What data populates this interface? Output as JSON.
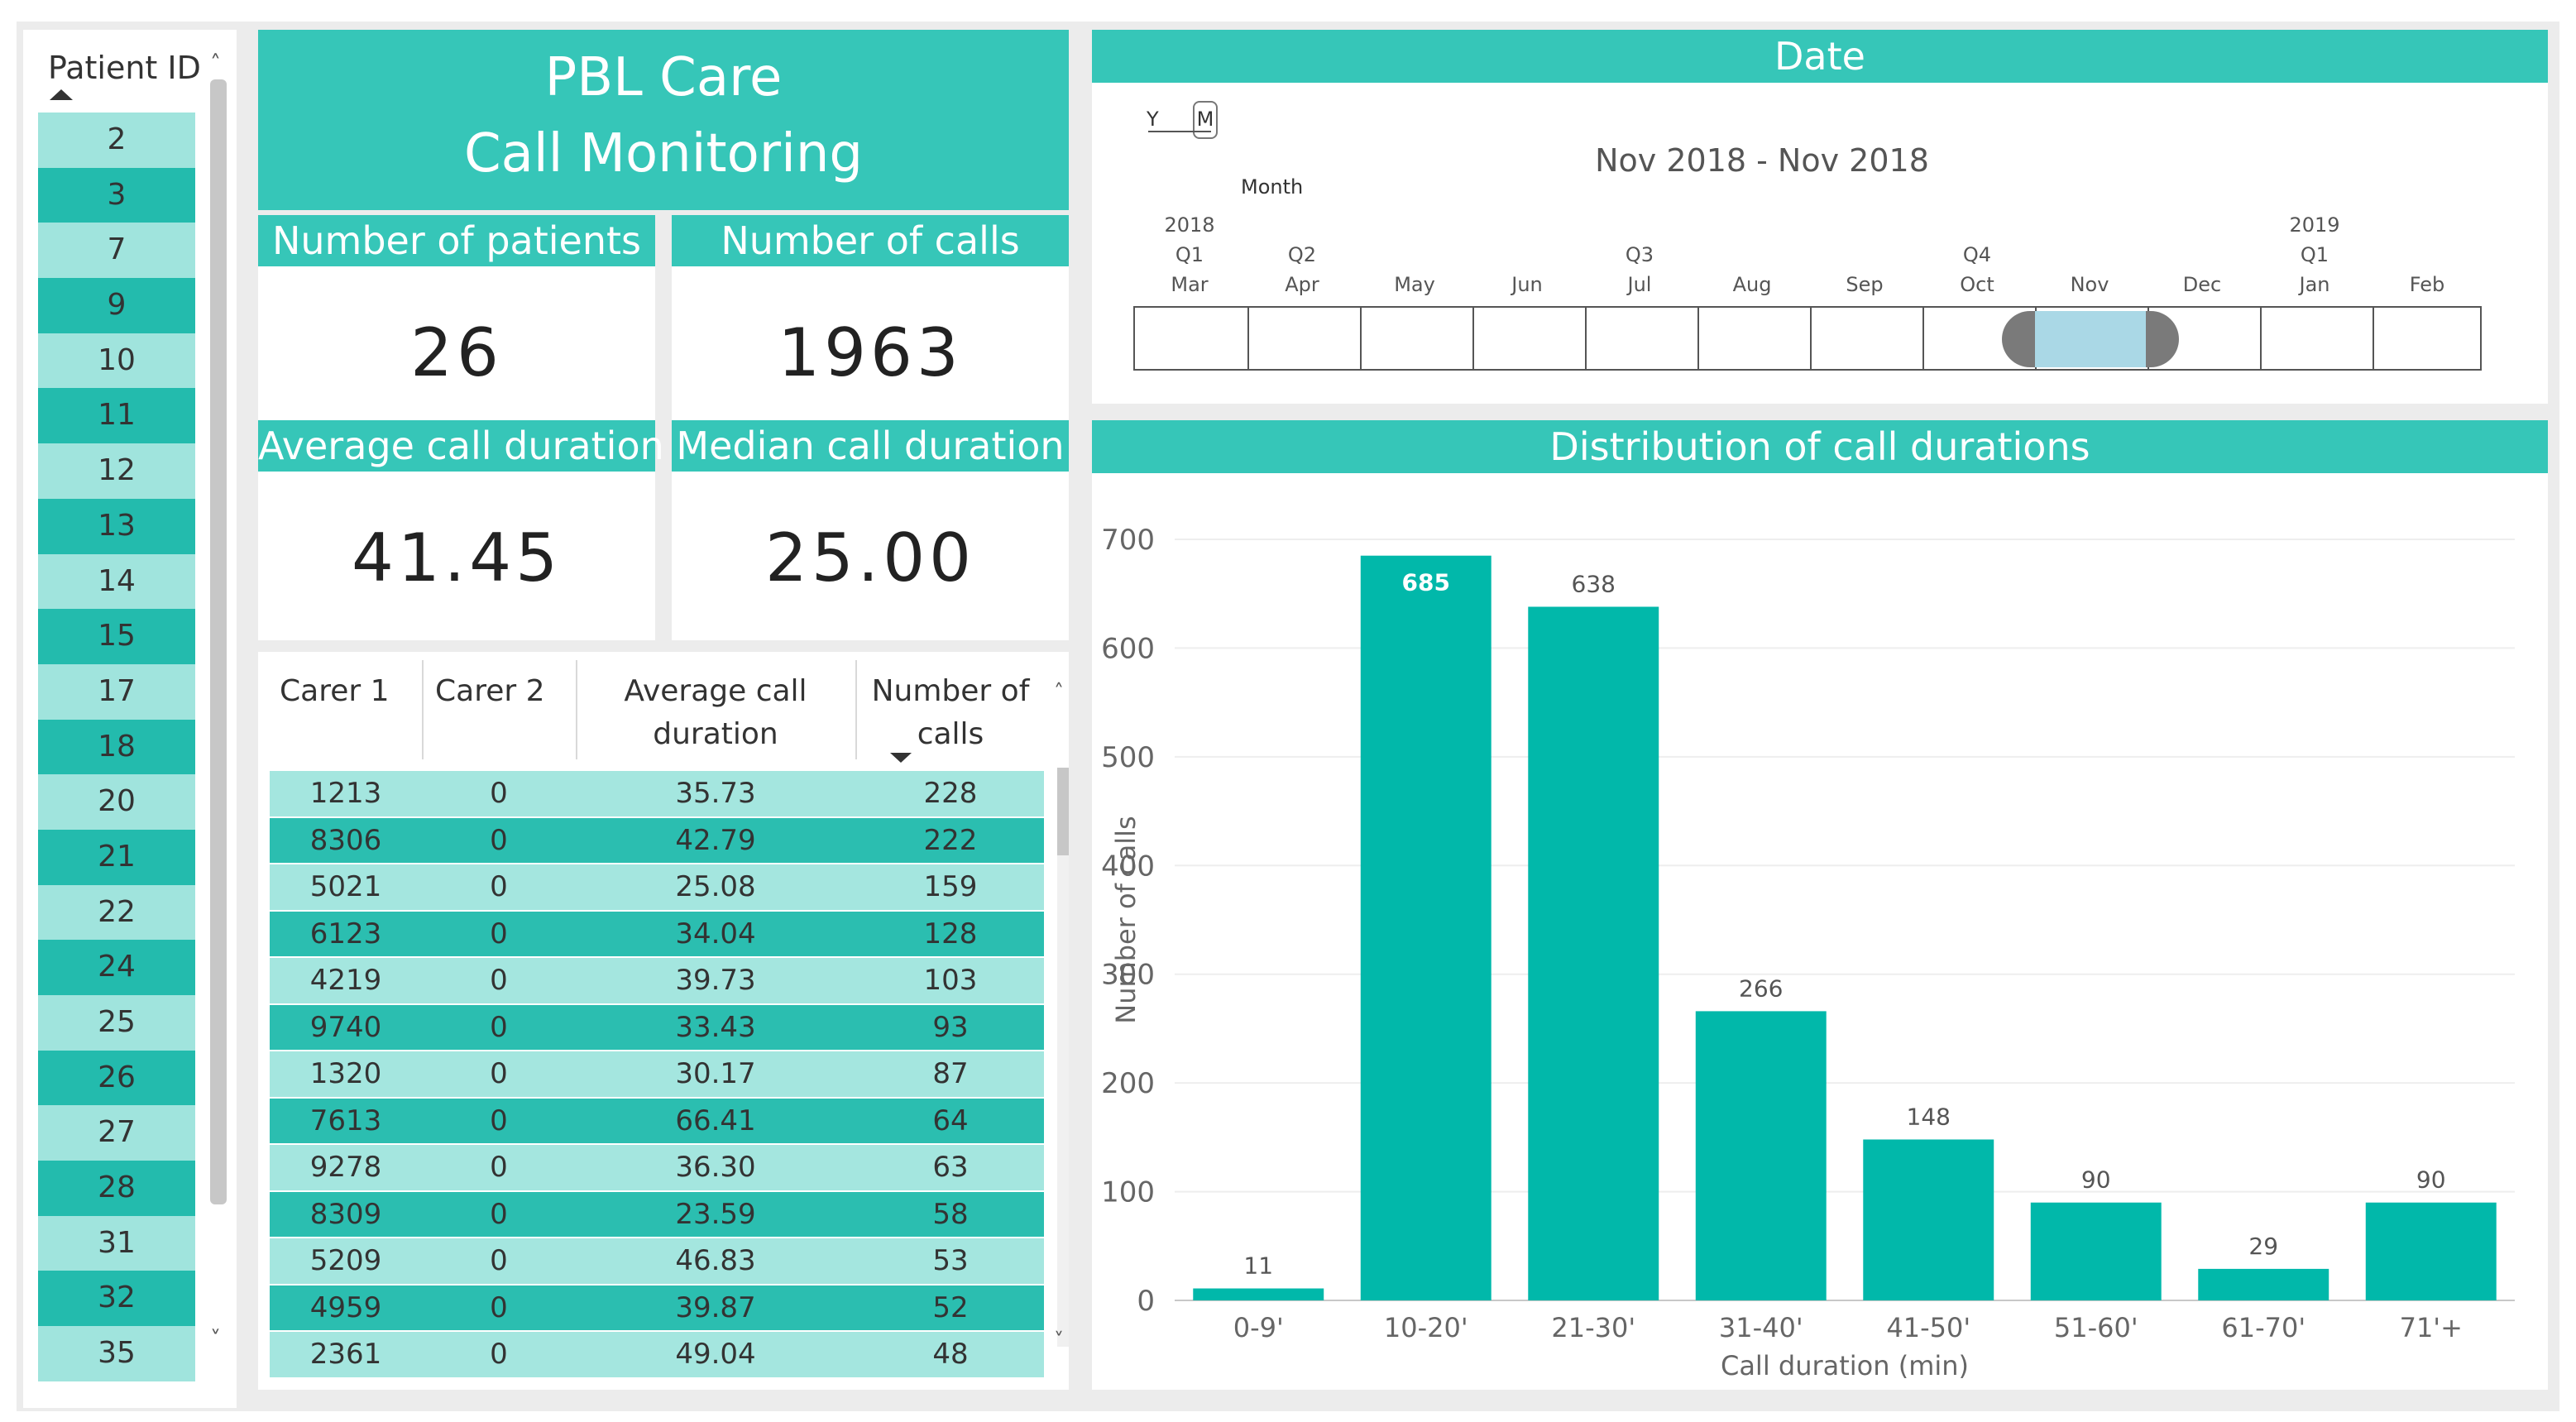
{
  "slicer": {
    "title": "Patient ID",
    "ids": [
      "2",
      "3",
      "7",
      "9",
      "10",
      "11",
      "12",
      "13",
      "14",
      "15",
      "17",
      "18",
      "20",
      "21",
      "22",
      "24",
      "25",
      "26",
      "27",
      "28",
      "31",
      "32",
      "35"
    ]
  },
  "title": {
    "line1": "PBL Care",
    "line2": "Call Monitoring"
  },
  "kpis": {
    "patients": {
      "label": "Number of patients",
      "value": "26"
    },
    "calls": {
      "label": "Number of calls",
      "value": "1963"
    },
    "avg": {
      "label": "Average call duration",
      "value": "41.45"
    },
    "median": {
      "label": "Median call duration",
      "value": "25.00"
    }
  },
  "table": {
    "headers": {
      "c1": "Carer 1",
      "c2": "Carer 2",
      "c3a": "Average call",
      "c3b": "duration",
      "c4a": "Number of",
      "c4b": "calls"
    },
    "rows": [
      [
        "1213",
        "0",
        "35.73",
        "228"
      ],
      [
        "8306",
        "0",
        "42.79",
        "222"
      ],
      [
        "5021",
        "0",
        "25.08",
        "159"
      ],
      [
        "6123",
        "0",
        "34.04",
        "128"
      ],
      [
        "4219",
        "0",
        "39.73",
        "103"
      ],
      [
        "9740",
        "0",
        "33.43",
        "93"
      ],
      [
        "1320",
        "0",
        "30.17",
        "87"
      ],
      [
        "7613",
        "0",
        "66.41",
        "64"
      ],
      [
        "9278",
        "0",
        "36.30",
        "63"
      ],
      [
        "8309",
        "0",
        "23.59",
        "58"
      ],
      [
        "5209",
        "0",
        "46.83",
        "53"
      ],
      [
        "4959",
        "0",
        "39.87",
        "52"
      ],
      [
        "2361",
        "0",
        "49.04",
        "48"
      ]
    ]
  },
  "date": {
    "title": "Date",
    "toggle": {
      "y": "Y",
      "m": "M",
      "granularity": "Month"
    },
    "range": "Nov 2018 - Nov 2018",
    "years": [
      {
        "label": "2018",
        "idx": 0
      },
      {
        "label": "2019",
        "idx": 10
      }
    ],
    "quarters": [
      {
        "label": "Q1",
        "idx": 0
      },
      {
        "label": "Q2",
        "idx": 1
      },
      {
        "label": "Q3",
        "idx": 4
      },
      {
        "label": "Q4",
        "idx": 7
      },
      {
        "label": "Q1",
        "idx": 10
      }
    ],
    "months": [
      "Mar",
      "Apr",
      "May",
      "Jun",
      "Jul",
      "Aug",
      "Sep",
      "Oct",
      "Nov",
      "Dec",
      "Jan",
      "Feb"
    ],
    "selected_month": "Nov"
  },
  "chart_data": {
    "type": "bar",
    "title": "Distribution of call durations",
    "categories": [
      "0-9'",
      "10-20'",
      "21-30'",
      "31-40'",
      "41-50'",
      "51-60'",
      "61-70'",
      "71'+"
    ],
    "values": [
      11,
      685,
      638,
      266,
      148,
      90,
      29,
      90
    ],
    "data_labels": [
      "11",
      "685",
      "638",
      "266",
      "148",
      "90",
      "29",
      "90"
    ],
    "xlabel": "Call duration (min)",
    "ylabel": "Number of calls",
    "ylim": [
      0,
      700
    ],
    "yticks": [
      0,
      100,
      200,
      300,
      400,
      500,
      600,
      700
    ],
    "grid": true,
    "color": "#01b8aa"
  },
  "colors": {
    "accent": "#36c6b8",
    "bar": "#01b8aa",
    "row_light": "#a0e4dd",
    "row_dark": "#23bbad"
  }
}
